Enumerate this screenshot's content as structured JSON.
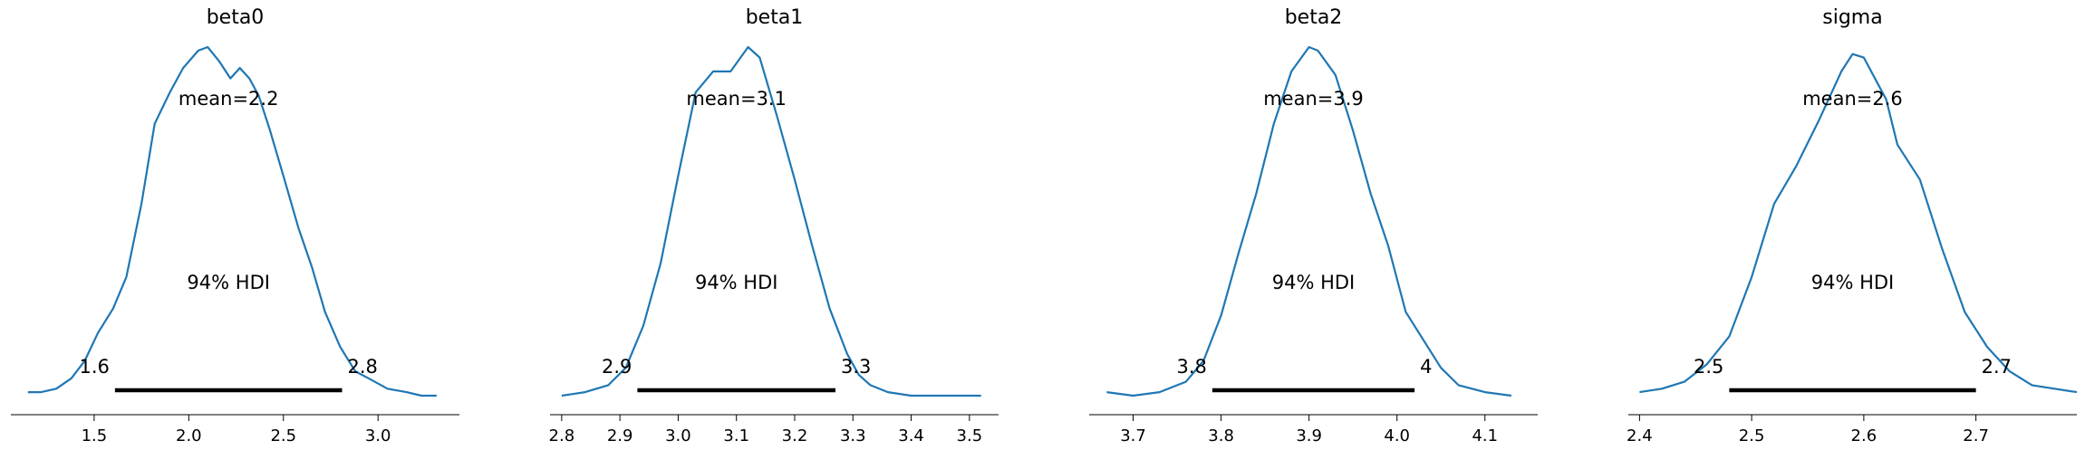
{
  "figure": {
    "line_color": "#1f77b4",
    "hdi_color": "#000000",
    "hdi_label": "94% HDI",
    "grid": false
  },
  "chart_data": [
    {
      "type": "line",
      "title": "beta0",
      "mean_label": "mean=2.2",
      "hdi_low_label": "1.6",
      "hdi_high_label": "2.8",
      "hdi": [
        1.61,
        2.81
      ],
      "xlim": [
        1.06,
        3.43
      ],
      "ylim": [
        0,
        1
      ],
      "xticks": [
        1.5,
        2.0,
        2.5,
        3.0
      ],
      "xtick_labels": [
        "1.5",
        "2.0",
        "2.5",
        "3.0"
      ],
      "density": {
        "x": [
          1.15,
          1.22,
          1.3,
          1.38,
          1.45,
          1.52,
          1.6,
          1.67,
          1.75,
          1.82,
          1.9,
          1.97,
          2.05,
          2.1,
          2.16,
          2.22,
          2.27,
          2.32,
          2.37,
          2.43,
          2.5,
          2.58,
          2.65,
          2.72,
          2.8,
          2.88,
          2.95,
          3.05,
          3.15,
          3.23,
          3.31
        ],
        "y": [
          0.01,
          0.01,
          0.02,
          0.05,
          0.1,
          0.18,
          0.25,
          0.34,
          0.55,
          0.78,
          0.87,
          0.94,
          0.99,
          1.0,
          0.96,
          0.91,
          0.94,
          0.91,
          0.86,
          0.76,
          0.63,
          0.48,
          0.37,
          0.24,
          0.14,
          0.07,
          0.05,
          0.02,
          0.01,
          0.0,
          0.0
        ]
      }
    },
    {
      "type": "line",
      "title": "beta1",
      "mean_label": "mean=3.1",
      "hdi_low_label": "2.9",
      "hdi_high_label": "3.3",
      "hdi": [
        2.93,
        3.27
      ],
      "xlim": [
        2.78,
        3.55
      ],
      "ylim": [
        0,
        1
      ],
      "xticks": [
        2.8,
        2.9,
        3.0,
        3.1,
        3.2,
        3.3,
        3.4,
        3.5
      ],
      "xtick_labels": [
        "2.8",
        "2.9",
        "3.0",
        "3.1",
        "3.2",
        "3.3",
        "3.4",
        "3.5"
      ],
      "density": {
        "x": [
          2.8,
          2.84,
          2.88,
          2.91,
          2.94,
          2.97,
          3.0,
          3.03,
          3.06,
          3.09,
          3.12,
          3.14,
          3.17,
          3.2,
          3.23,
          3.26,
          3.29,
          3.31,
          3.33,
          3.36,
          3.4,
          3.45,
          3.52
        ],
        "y": [
          0.0,
          0.01,
          0.03,
          0.08,
          0.2,
          0.38,
          0.63,
          0.87,
          0.93,
          0.93,
          1.0,
          0.97,
          0.8,
          0.62,
          0.43,
          0.25,
          0.12,
          0.06,
          0.03,
          0.01,
          0.0,
          0.0,
          0.0
        ]
      }
    },
    {
      "type": "line",
      "title": "beta2",
      "mean_label": "mean=3.9",
      "hdi_low_label": "3.8",
      "hdi_high_label": "4",
      "hdi": [
        3.79,
        4.02
      ],
      "xlim": [
        3.65,
        4.16
      ],
      "ylim": [
        0,
        1
      ],
      "xticks": [
        3.7,
        3.8,
        3.9,
        4.0,
        4.1
      ],
      "xtick_labels": [
        "3.7",
        "3.8",
        "3.9",
        "4.0",
        "4.1"
      ],
      "density": {
        "x": [
          3.67,
          3.7,
          3.73,
          3.76,
          3.78,
          3.8,
          3.82,
          3.84,
          3.86,
          3.88,
          3.9,
          3.91,
          3.93,
          3.95,
          3.97,
          3.99,
          4.01,
          4.03,
          4.05,
          4.07,
          4.1,
          4.13
        ],
        "y": [
          0.01,
          0.0,
          0.01,
          0.04,
          0.1,
          0.23,
          0.41,
          0.58,
          0.78,
          0.93,
          1.0,
          0.99,
          0.92,
          0.76,
          0.58,
          0.43,
          0.24,
          0.16,
          0.08,
          0.03,
          0.01,
          0.0
        ]
      }
    },
    {
      "type": "line",
      "title": "sigma",
      "mean_label": "mean=2.6",
      "hdi_low_label": "2.5",
      "hdi_high_label": "2.7",
      "hdi": [
        2.48,
        2.7
      ],
      "xlim": [
        2.39,
        2.79
      ],
      "ylim": [
        0,
        1
      ],
      "xticks": [
        2.4,
        2.5,
        2.6,
        2.7
      ],
      "xtick_labels": [
        "2.4",
        "2.5",
        "2.6",
        "2.7"
      ],
      "density": {
        "x": [
          2.4,
          2.42,
          2.44,
          2.46,
          2.48,
          2.5,
          2.52,
          2.54,
          2.56,
          2.58,
          2.59,
          2.6,
          2.62,
          2.63,
          2.65,
          2.67,
          2.69,
          2.71,
          2.73,
          2.75,
          2.77,
          2.79
        ],
        "y": [
          0.01,
          0.02,
          0.04,
          0.09,
          0.17,
          0.34,
          0.55,
          0.66,
          0.79,
          0.93,
          0.98,
          0.97,
          0.85,
          0.72,
          0.62,
          0.42,
          0.24,
          0.14,
          0.07,
          0.03,
          0.02,
          0.01
        ]
      }
    }
  ]
}
